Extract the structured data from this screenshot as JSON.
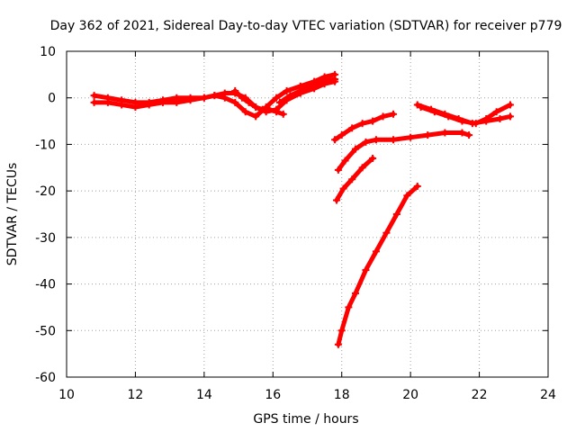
{
  "chart_data": {
    "type": "scatter",
    "title": "Day 362 of 2021, Sidereal Day-to-day VTEC variation (SDTVAR) for receiver p779",
    "xlabel": "GPS time / hours",
    "ylabel": "SDTVAR / TECUs",
    "xlim": [
      10,
      24
    ],
    "ylim": [
      -60,
      10
    ],
    "xticks": [
      "10",
      "12",
      "14",
      "16",
      "18",
      "20",
      "22",
      "24"
    ],
    "yticks": [
      "10",
      "0",
      "-10",
      "-20",
      "-30",
      "-40",
      "-50",
      "-60"
    ],
    "grid": true,
    "legend": "none",
    "marker_color": "#ff0000",
    "series": [
      {
        "x": [
          10.8,
          11.2,
          11.6,
          12.0,
          12.4,
          12.8,
          13.2,
          13.6,
          14.0,
          14.3,
          14.6,
          14.9,
          15.2,
          15.5,
          15.8,
          16.1,
          16.4,
          16.8,
          17.2,
          17.5,
          17.8
        ],
        "y": [
          0.5,
          0,
          -0.5,
          -1,
          -1,
          -0.5,
          0,
          0,
          0,
          0.5,
          0,
          -1,
          -3,
          -4,
          -2,
          0,
          1.5,
          2.5,
          3.5,
          4.5,
          5
        ]
      },
      {
        "x": [
          10.8,
          11.2,
          11.6,
          12.0,
          12.4,
          12.8,
          13.2,
          13.6,
          14.0,
          14.3,
          14.6,
          14.9,
          15.2,
          15.5,
          15.8,
          16.1,
          16.4,
          16.8,
          17.2,
          17.5,
          17.8
        ],
        "y": [
          -1,
          -1,
          -1.5,
          -2,
          -1.5,
          -1,
          -1,
          -0.5,
          0,
          0.5,
          1,
          1,
          0,
          -2,
          -3,
          -2.5,
          -0.5,
          1,
          2,
          3,
          3.5
        ]
      },
      {
        "x": [
          14.9,
          15.1,
          15.3,
          15.5,
          15.7,
          15.9,
          16.1,
          16.3
        ],
        "y": [
          1.5,
          0,
          -1,
          -2,
          -2.5,
          -2.5,
          -3,
          -3.5
        ]
      },
      {
        "x": [
          16.2,
          16.5,
          16.8,
          17.1,
          17.4,
          17.8
        ],
        "y": [
          -1,
          0.5,
          1.5,
          2.5,
          3.5,
          4
        ]
      },
      {
        "x": [
          17.8,
          18.0,
          18.3,
          18.6,
          18.9,
          19.2,
          19.5
        ],
        "y": [
          -9,
          -8,
          -6.5,
          -5.5,
          -5,
          -4,
          -3.5
        ]
      },
      {
        "x": [
          17.9,
          18.1,
          18.4,
          18.7,
          19.0,
          19.5,
          20.0,
          20.5,
          21.0,
          21.5,
          21.7
        ],
        "y": [
          -15.5,
          -13.5,
          -11,
          -9.5,
          -9,
          -9,
          -8.5,
          -8,
          -7.5,
          -7.5,
          -8
        ]
      },
      {
        "x": [
          17.85,
          18.05,
          18.3,
          18.6,
          18.9
        ],
        "y": [
          -22,
          -19.5,
          -17.5,
          -15,
          -13
        ]
      },
      {
        "x": [
          17.9,
          18.0,
          18.2,
          18.4,
          18.7,
          19.0,
          19.3,
          19.6,
          19.9,
          20.2
        ],
        "y": [
          -53,
          -50,
          -45,
          -42,
          -37,
          -33,
          -29,
          -25,
          -21,
          -19
        ]
      },
      {
        "x": [
          20.2,
          20.6,
          21.0,
          21.4,
          21.8,
          22.2,
          22.6,
          22.9
        ],
        "y": [
          -1.5,
          -2.5,
          -3.5,
          -4.5,
          -5.5,
          -5,
          -4.5,
          -4
        ]
      },
      {
        "x": [
          20.3,
          20.7,
          21.1,
          21.5,
          21.9,
          22.2,
          22.5,
          22.9
        ],
        "y": [
          -2,
          -3,
          -4,
          -5,
          -5.5,
          -4.5,
          -3,
          -1.5
        ]
      }
    ]
  }
}
